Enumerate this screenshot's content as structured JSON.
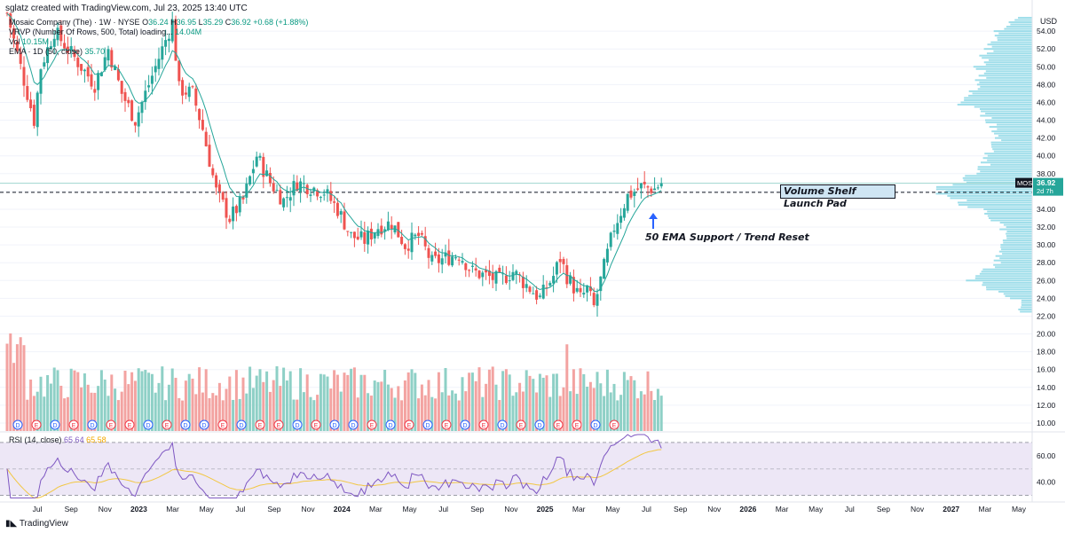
{
  "header": {
    "attribution": "sglatz created with TradingView.com, Jul 23, 2025 13:40 UTC"
  },
  "legend": {
    "symbol_line": "Mosaic Company (The) · 1W · NYSE",
    "o_label": "O",
    "o_value": "36.24",
    "h_label": "H",
    "h_value": "36.95",
    "l_label": "L",
    "l_value": "35.29",
    "c_label": "C",
    "c_value": "36.92",
    "change": "+0.68 (+1.88%)",
    "vrvp_line": "VRVP (Number Of Rows, 500, Total) loading...",
    "vrvp_value": "14.04M",
    "vol_line": "Vol",
    "vol_value": "10.15M",
    "ema_line": "EMA · 1D (50, close)",
    "ema_value": "35.70"
  },
  "currency": "USD",
  "annotations": {
    "callout": "Volume Shelf Launch Pad",
    "ema_note": "50 EMA Support / Trend Reset"
  },
  "price_tag": {
    "symbol": "MOS",
    "price": "36.92",
    "countdown": "2d 7h"
  },
  "rsi_legend": {
    "label": "RSI (14, close)",
    "value1": "65.64",
    "value2": "65.58"
  },
  "footer": {
    "brand": "TradingView"
  },
  "colors": {
    "up": "#26a69a",
    "down": "#ef5350",
    "vol_up": "#8ed0c6",
    "vol_down": "#f3a3a1",
    "ema": "#26a69a",
    "profile": "#7fd3e3",
    "rsi_line": "#7e57c2",
    "rsi_ma": "#f2c744",
    "rsi_band": "#ede7f6",
    "dashed_level": "#131722",
    "event_blue": "#2962ff",
    "event_red": "#f23645"
  },
  "chart_data": [
    {
      "type": "candlestick",
      "title": "Mosaic Company (The) · 1W · NYSE",
      "y_axis_ticks": [
        "10.00",
        "12.00",
        "14.00",
        "16.00",
        "18.00",
        "20.00",
        "22.00",
        "24.00",
        "26.00",
        "28.00",
        "30.00",
        "32.00",
        "34.00",
        "36.00",
        "38.00",
        "40.00",
        "42.00",
        "44.00",
        "46.00",
        "48.00",
        "50.00",
        "52.00",
        "54.00"
      ],
      "x_axis_ticks": [
        "Jul",
        "Sep",
        "Nov",
        "2023",
        "Mar",
        "May",
        "Jul",
        "Sep",
        "Nov",
        "2024",
        "Mar",
        "May",
        "Jul",
        "Sep",
        "Nov",
        "2025",
        "Mar",
        "May",
        "Jul",
        "Sep",
        "Nov",
        "2026",
        "Mar",
        "May",
        "Jul",
        "Sep",
        "Nov",
        "2027",
        "Mar",
        "May"
      ],
      "ylim": [
        9.5,
        56.5
      ],
      "last_close": 36.92,
      "level_dashed": 35.9,
      "close_path": [
        {
          "week": 0,
          "close": 56.0
        },
        {
          "week": 4,
          "close": 50.0
        },
        {
          "week": 8,
          "close": 44.0
        },
        {
          "week": 10,
          "close": 50.0
        },
        {
          "week": 14,
          "close": 54.0
        },
        {
          "week": 18,
          "close": 52.0
        },
        {
          "week": 22,
          "close": 50.0
        },
        {
          "week": 26,
          "close": 48.0
        },
        {
          "week": 30,
          "close": 52.0
        },
        {
          "week": 34,
          "close": 47.0
        },
        {
          "week": 38,
          "close": 44.0
        },
        {
          "week": 42,
          "close": 48.0
        },
        {
          "week": 46,
          "close": 52.0
        },
        {
          "week": 49,
          "close": 55.0
        },
        {
          "week": 51,
          "close": 47.5
        },
        {
          "week": 55,
          "close": 47.0
        },
        {
          "week": 58,
          "close": 43.0
        },
        {
          "week": 62,
          "close": 36.0
        },
        {
          "week": 66,
          "close": 33.0
        },
        {
          "week": 70,
          "close": 35.0
        },
        {
          "week": 74,
          "close": 40.0
        },
        {
          "week": 78,
          "close": 37.0
        },
        {
          "week": 82,
          "close": 35.0
        },
        {
          "week": 86,
          "close": 37.0
        },
        {
          "week": 90,
          "close": 36.5
        },
        {
          "week": 94,
          "close": 36.0
        },
        {
          "week": 98,
          "close": 34.0
        },
        {
          "week": 102,
          "close": 31.0
        },
        {
          "week": 106,
          "close": 30.5
        },
        {
          "week": 110,
          "close": 32.0
        },
        {
          "week": 114,
          "close": 32.5
        },
        {
          "week": 118,
          "close": 30.0
        },
        {
          "week": 122,
          "close": 31.0
        },
        {
          "week": 126,
          "close": 28.0
        },
        {
          "week": 130,
          "close": 28.5
        },
        {
          "week": 134,
          "close": 29.0
        },
        {
          "week": 138,
          "close": 27.0
        },
        {
          "week": 142,
          "close": 26.5
        },
        {
          "week": 146,
          "close": 26.0
        },
        {
          "week": 150,
          "close": 27.0
        },
        {
          "week": 154,
          "close": 25.5
        },
        {
          "week": 158,
          "close": 24.0
        },
        {
          "week": 162,
          "close": 26.5
        },
        {
          "week": 164,
          "close": 28.5
        },
        {
          "week": 166,
          "close": 26.5
        },
        {
          "week": 170,
          "close": 24.0
        },
        {
          "week": 172,
          "close": 25.0
        },
        {
          "week": 174,
          "close": 23.0
        },
        {
          "week": 176,
          "close": 26.0
        },
        {
          "week": 180,
          "close": 32.0
        },
        {
          "week": 184,
          "close": 35.5
        },
        {
          "week": 188,
          "close": 36.5
        },
        {
          "week": 192,
          "close": 36.3
        },
        {
          "week": 194,
          "close": 36.92
        }
      ],
      "volume_profile_levels": [
        {
          "price": 24.0,
          "rel": 0.25
        },
        {
          "price": 26.0,
          "rel": 0.6
        },
        {
          "price": 28.0,
          "rel": 0.35
        },
        {
          "price": 30.0,
          "rel": 0.3
        },
        {
          "price": 32.0,
          "rel": 0.3
        },
        {
          "price": 34.0,
          "rel": 0.55
        },
        {
          "price": 35.9,
          "rel": 1.0
        },
        {
          "price": 38.0,
          "rel": 0.55
        },
        {
          "price": 40.0,
          "rel": 0.45
        },
        {
          "price": 42.0,
          "rel": 0.35
        },
        {
          "price": 44.0,
          "rel": 0.45
        },
        {
          "price": 46.0,
          "rel": 0.7
        },
        {
          "price": 48.0,
          "rel": 0.5
        },
        {
          "price": 50.0,
          "rel": 0.55
        },
        {
          "price": 52.0,
          "rel": 0.45
        },
        {
          "price": 54.0,
          "rel": 0.35
        },
        {
          "price": 55.5,
          "rel": 0.15
        }
      ]
    },
    {
      "type": "line",
      "title": "RSI (14, close)",
      "y_axis_ticks": [
        "40.00",
        "60.00"
      ],
      "ylim": [
        25,
        78
      ],
      "bands": [
        30,
        50,
        70
      ],
      "series": [
        {
          "name": "RSI",
          "last": 65.64
        },
        {
          "name": "RSI MA",
          "last": 65.58
        }
      ]
    }
  ]
}
